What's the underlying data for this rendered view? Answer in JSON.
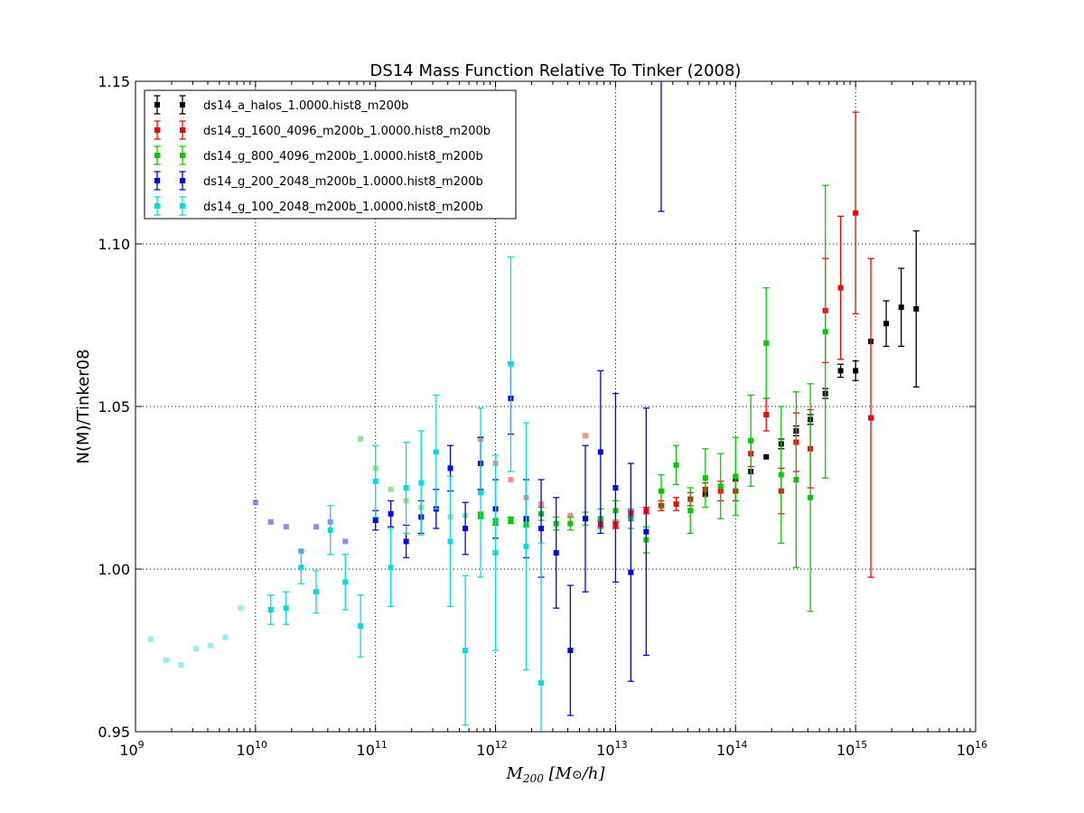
{
  "chart_data": {
    "type": "scatter",
    "title": "DS14 Mass Function Relative To Tinker (2008)",
    "xlabel_base": "M",
    "xlabel_sub": "200",
    "xlabel_units": "[M",
    "xlabel_units_sym": "⊙",
    "xlabel_units_end": "/h]",
    "ylabel": "N(M)/Tinker08",
    "xscale": "log",
    "xlim": [
      1000000000.0,
      1e+16
    ],
    "ylim": [
      0.95,
      1.15
    ],
    "xticks": [
      {
        "base": "10",
        "exp": "9"
      },
      {
        "base": "10",
        "exp": "10"
      },
      {
        "base": "10",
        "exp": "11"
      },
      {
        "base": "10",
        "exp": "12"
      },
      {
        "base": "10",
        "exp": "13"
      },
      {
        "base": "10",
        "exp": "14"
      },
      {
        "base": "10",
        "exp": "15"
      },
      {
        "base": "10",
        "exp": "16"
      }
    ],
    "yticks": [
      "0.95",
      "1.00",
      "1.05",
      "1.10",
      "1.15"
    ],
    "grid": true,
    "legend_position": "top-left",
    "series": [
      {
        "name": "ds14_a_halos_1.0000.hist8_m200b",
        "color": "#000000",
        "points": [
          {
            "x": 56000000000000.0,
            "y": 1.023,
            "err": 0.0
          },
          {
            "x": 100000000000000.0,
            "y": 1.028,
            "err": 0.0
          },
          {
            "x": 134000000000000.0,
            "y": 1.03,
            "err": 0.0
          },
          {
            "x": 180000000000000.0,
            "y": 1.0345,
            "err": 0.0
          },
          {
            "x": 240000000000000.0,
            "y": 1.0385,
            "err": 0.0015
          },
          {
            "x": 320000000000000.0,
            "y": 1.0425,
            "err": 0.0015
          },
          {
            "x": 420000000000000.0,
            "y": 1.046,
            "err": 0.0015
          },
          {
            "x": 560000000000000.0,
            "y": 1.054,
            "err": 0.0015
          },
          {
            "x": 750000000000000.0,
            "y": 1.061,
            "err": 0.002
          },
          {
            "x": 1000000000000000.0,
            "y": 1.061,
            "err": 0.003
          },
          {
            "x": 1340000000000000.0,
            "y": 1.07,
            "err": 0.0
          },
          {
            "x": 1800000000000000.0,
            "y": 1.0755,
            "err": 0.007
          },
          {
            "x": 2400000000000000.0,
            "y": 1.0805,
            "err": 0.012
          },
          {
            "x": 3200000000000000.0,
            "y": 1.08,
            "err": 0.024
          }
        ]
      },
      {
        "name": "ds14_g_1600_4096_m200b_1.0000.hist8_m200b",
        "color": "#ff0000",
        "points": [
          {
            "x": 750000000000.0,
            "y": 1.04,
            "err": 0.0,
            "faded": true
          },
          {
            "x": 1000000000000.0,
            "y": 1.0325,
            "err": 0.0,
            "faded": true
          },
          {
            "x": 1340000000000.0,
            "y": 1.0275,
            "err": 0.0,
            "faded": true
          },
          {
            "x": 1800000000000.0,
            "y": 1.022,
            "err": 0.0,
            "faded": true
          },
          {
            "x": 2400000000000.0,
            "y": 1.02,
            "err": 0.0,
            "faded": true
          },
          {
            "x": 4200000000000.0,
            "y": 1.0165,
            "err": 0.0,
            "faded": true
          },
          {
            "x": 5600000000000.0,
            "y": 1.041,
            "err": 0.0,
            "faded": true
          },
          {
            "x": 7500000000000.0,
            "y": 1.014,
            "err": 0.001
          },
          {
            "x": 10000000000000.0,
            "y": 1.0135,
            "err": 0.001
          },
          {
            "x": 13400000000000.0,
            "y": 1.017,
            "err": 0.001
          },
          {
            "x": 18000000000000.0,
            "y": 1.018,
            "err": 0.001
          },
          {
            "x": 24000000000000.0,
            "y": 1.0195,
            "err": 0.0015
          },
          {
            "x": 32000000000000.0,
            "y": 1.02,
            "err": 0.002
          },
          {
            "x": 42000000000000.0,
            "y": 1.0215,
            "err": 0.002
          },
          {
            "x": 56000000000000.0,
            "y": 1.0245,
            "err": 0.002
          },
          {
            "x": 75000000000000.0,
            "y": 1.024,
            "err": 0.003
          },
          {
            "x": 100000000000000.0,
            "y": 1.024,
            "err": 0.003
          },
          {
            "x": 134000000000000.0,
            "y": 1.0355,
            "err": 0.004
          },
          {
            "x": 180000000000000.0,
            "y": 1.0475,
            "err": 0.005
          },
          {
            "x": 240000000000000.0,
            "y": 1.024,
            "err": 0.007
          },
          {
            "x": 320000000000000.0,
            "y": 1.039,
            "err": 0.009
          },
          {
            "x": 420000000000000.0,
            "y": 1.037,
            "err": 0.012
          },
          {
            "x": 560000000000000.0,
            "y": 1.0795,
            "err": 0.016
          },
          {
            "x": 750000000000000.0,
            "y": 1.0865,
            "err": 0.022
          },
          {
            "x": 1000000000000000.0,
            "y": 1.1095,
            "err": 0.031
          },
          {
            "x": 1340000000000000.0,
            "y": 1.0465,
            "err": 0.049
          }
        ]
      },
      {
        "name": "ds14_g_800_4096_m200b_1.0000.hist8_m200b",
        "color": "#00cc00",
        "points": [
          {
            "x": 75000000000.0,
            "y": 1.04,
            "err": 0.0,
            "faded": true
          },
          {
            "x": 100000000000.0,
            "y": 1.031,
            "err": 0.0,
            "faded": true
          },
          {
            "x": 134000000000.0,
            "y": 1.0245,
            "err": 0.0,
            "faded": true
          },
          {
            "x": 180000000000.0,
            "y": 1.021,
            "err": 0.0,
            "faded": true
          },
          {
            "x": 240000000000.0,
            "y": 1.019,
            "err": 0.0,
            "faded": true
          },
          {
            "x": 420000000000.0,
            "y": 1.016,
            "err": 0.0,
            "faded": true
          },
          {
            "x": 560000000000.0,
            "y": 1.0165,
            "err": 0.0,
            "faded": true
          },
          {
            "x": 750000000000.0,
            "y": 1.0165,
            "err": 0.001
          },
          {
            "x": 1000000000000.0,
            "y": 1.0145,
            "err": 0.001
          },
          {
            "x": 1340000000000.0,
            "y": 1.015,
            "err": 0.001
          },
          {
            "x": 1800000000000.0,
            "y": 1.014,
            "err": 0.001
          },
          {
            "x": 2400000000000.0,
            "y": 1.017,
            "err": 0.002
          },
          {
            "x": 3200000000000.0,
            "y": 1.014,
            "err": 0.002
          },
          {
            "x": 4200000000000.0,
            "y": 1.014,
            "err": 0.002
          },
          {
            "x": 5600000000000.0,
            "y": 1.0155,
            "err": 0.002
          },
          {
            "x": 7500000000000.0,
            "y": 1.0155,
            "err": 0.003
          },
          {
            "x": 10000000000000.0,
            "y": 1.018,
            "err": 0.003
          },
          {
            "x": 13400000000000.0,
            "y": 1.0155,
            "err": 0.003
          },
          {
            "x": 18000000000000.0,
            "y": 1.009,
            "err": 0.004
          },
          {
            "x": 24000000000000.0,
            "y": 1.024,
            "err": 0.005
          },
          {
            "x": 32000000000000.0,
            "y": 1.032,
            "err": 0.006
          },
          {
            "x": 42000000000000.0,
            "y": 1.018,
            "err": 0.007
          },
          {
            "x": 56000000000000.0,
            "y": 1.028,
            "err": 0.009
          },
          {
            "x": 75000000000000.0,
            "y": 1.0255,
            "err": 0.01
          },
          {
            "x": 100000000000000.0,
            "y": 1.0285,
            "err": 0.012
          },
          {
            "x": 134000000000000.0,
            "y": 1.0395,
            "err": 0.014
          },
          {
            "x": 180000000000000.0,
            "y": 1.0695,
            "err": 0.017
          },
          {
            "x": 240000000000000.0,
            "y": 1.029,
            "err": 0.021
          },
          {
            "x": 320000000000000.0,
            "y": 1.0275,
            "err": 0.027
          },
          {
            "x": 420000000000000.0,
            "y": 1.022,
            "err": 0.035
          },
          {
            "x": 560000000000000.0,
            "y": 1.073,
            "err": 0.045
          }
        ]
      },
      {
        "name": "ds14_g_200_2048_m200b_1.0000.hist8_m200b",
        "color": "#0000ff",
        "points": [
          {
            "x": 10000000000.0,
            "y": 1.0205,
            "err": 0.0,
            "faded": true
          },
          {
            "x": 13400000000.0,
            "y": 1.0145,
            "err": 0.0,
            "faded": true
          },
          {
            "x": 18000000000.0,
            "y": 1.013,
            "err": 0.0,
            "faded": true
          },
          {
            "x": 24000000000.0,
            "y": 1.0055,
            "err": 0.0,
            "faded": true
          },
          {
            "x": 32000000000.0,
            "y": 1.013,
            "err": 0.0,
            "faded": true
          },
          {
            "x": 42000000000.0,
            "y": 1.0145,
            "err": 0.0,
            "faded": true
          },
          {
            "x": 56000000000.0,
            "y": 1.0085,
            "err": 0.0,
            "faded": true
          },
          {
            "x": 100000000000.0,
            "y": 1.015,
            "err": 0.003
          },
          {
            "x": 134000000000.0,
            "y": 1.017,
            "err": 0.004
          },
          {
            "x": 180000000000.0,
            "y": 1.0085,
            "err": 0.005
          },
          {
            "x": 240000000000.0,
            "y": 1.016,
            "err": 0.005
          },
          {
            "x": 320000000000.0,
            "y": 1.0185,
            "err": 0.006
          },
          {
            "x": 420000000000.0,
            "y": 1.031,
            "err": 0.007
          },
          {
            "x": 560000000000.0,
            "y": 1.0125,
            "err": 0.008
          },
          {
            "x": 750000000000.0,
            "y": 1.0325,
            "err": 0.008
          },
          {
            "x": 1000000000000.0,
            "y": 1.0185,
            "err": 0.009
          },
          {
            "x": 1340000000000.0,
            "y": 1.0525,
            "err": 0.011
          },
          {
            "x": 1800000000000.0,
            "y": 1.0155,
            "err": 0.012
          },
          {
            "x": 2400000000000.0,
            "y": 1.0125,
            "err": 0.015
          },
          {
            "x": 3200000000000.0,
            "y": 1.005,
            "err": 0.017
          },
          {
            "x": 4200000000000.0,
            "y": 0.975,
            "err": 0.02
          },
          {
            "x": 5600000000000.0,
            "y": 1.0155,
            "err": 0.0225
          },
          {
            "x": 7500000000000.0,
            "y": 1.036,
            "err": 0.025
          },
          {
            "x": 10000000000000.0,
            "y": 1.025,
            "err": 0.029
          },
          {
            "x": 13400000000000.0,
            "y": 0.999,
            "err": 0.0335
          },
          {
            "x": 18000000000000.0,
            "y": 1.0115,
            "err": 0.038
          },
          {
            "x": 24000000000000.0,
            "y": 1.16,
            "err": 0.05
          }
        ]
      },
      {
        "name": "ds14_g_100_2048_m200b_1.0000.hist8_m200b",
        "color": "#00dddd",
        "points": [
          {
            "x": 1340000000.0,
            "y": 0.9785,
            "err": 0.0,
            "faded": true
          },
          {
            "x": 1800000000.0,
            "y": 0.972,
            "err": 0.0,
            "faded": true
          },
          {
            "x": 2400000000.0,
            "y": 0.9705,
            "err": 0.0,
            "faded": true
          },
          {
            "x": 3200000000.0,
            "y": 0.9755,
            "err": 0.0,
            "faded": true
          },
          {
            "x": 4200000000.0,
            "y": 0.9765,
            "err": 0.0,
            "faded": true
          },
          {
            "x": 5600000000.0,
            "y": 0.979,
            "err": 0.0,
            "faded": true
          },
          {
            "x": 7500000000.0,
            "y": 0.988,
            "err": 0.0,
            "faded": true
          },
          {
            "x": 13400000000.0,
            "y": 0.9875,
            "err": 0.0045
          },
          {
            "x": 18000000000.0,
            "y": 0.988,
            "err": 0.005
          },
          {
            "x": 24000000000.0,
            "y": 1.0005,
            "err": 0.005
          },
          {
            "x": 32000000000.0,
            "y": 0.993,
            "err": 0.0065
          },
          {
            "x": 42000000000.0,
            "y": 1.012,
            "err": 0.0075
          },
          {
            "x": 56000000000.0,
            "y": 0.996,
            "err": 0.0085
          },
          {
            "x": 75000000000.0,
            "y": 0.9825,
            "err": 0.0095
          },
          {
            "x": 100000000000.0,
            "y": 1.027,
            "err": 0.011
          },
          {
            "x": 134000000000.0,
            "y": 1.0005,
            "err": 0.012
          },
          {
            "x": 180000000000.0,
            "y": 1.025,
            "err": 0.014
          },
          {
            "x": 240000000000.0,
            "y": 1.0265,
            "err": 0.016
          },
          {
            "x": 320000000000.0,
            "y": 1.036,
            "err": 0.0175
          },
          {
            "x": 420000000000.0,
            "y": 1.0085,
            "err": 0.02
          },
          {
            "x": 560000000000.0,
            "y": 0.975,
            "err": 0.023
          },
          {
            "x": 750000000000.0,
            "y": 1.0235,
            "err": 0.026
          },
          {
            "x": 1000000000000.0,
            "y": 1.005,
            "err": 0.03
          },
          {
            "x": 1340000000000.0,
            "y": 1.063,
            "err": 0.033
          },
          {
            "x": 1800000000000.0,
            "y": 1.007,
            "err": 0.038
          },
          {
            "x": 2400000000000.0,
            "y": 0.965,
            "err": 0.043
          }
        ]
      }
    ]
  }
}
